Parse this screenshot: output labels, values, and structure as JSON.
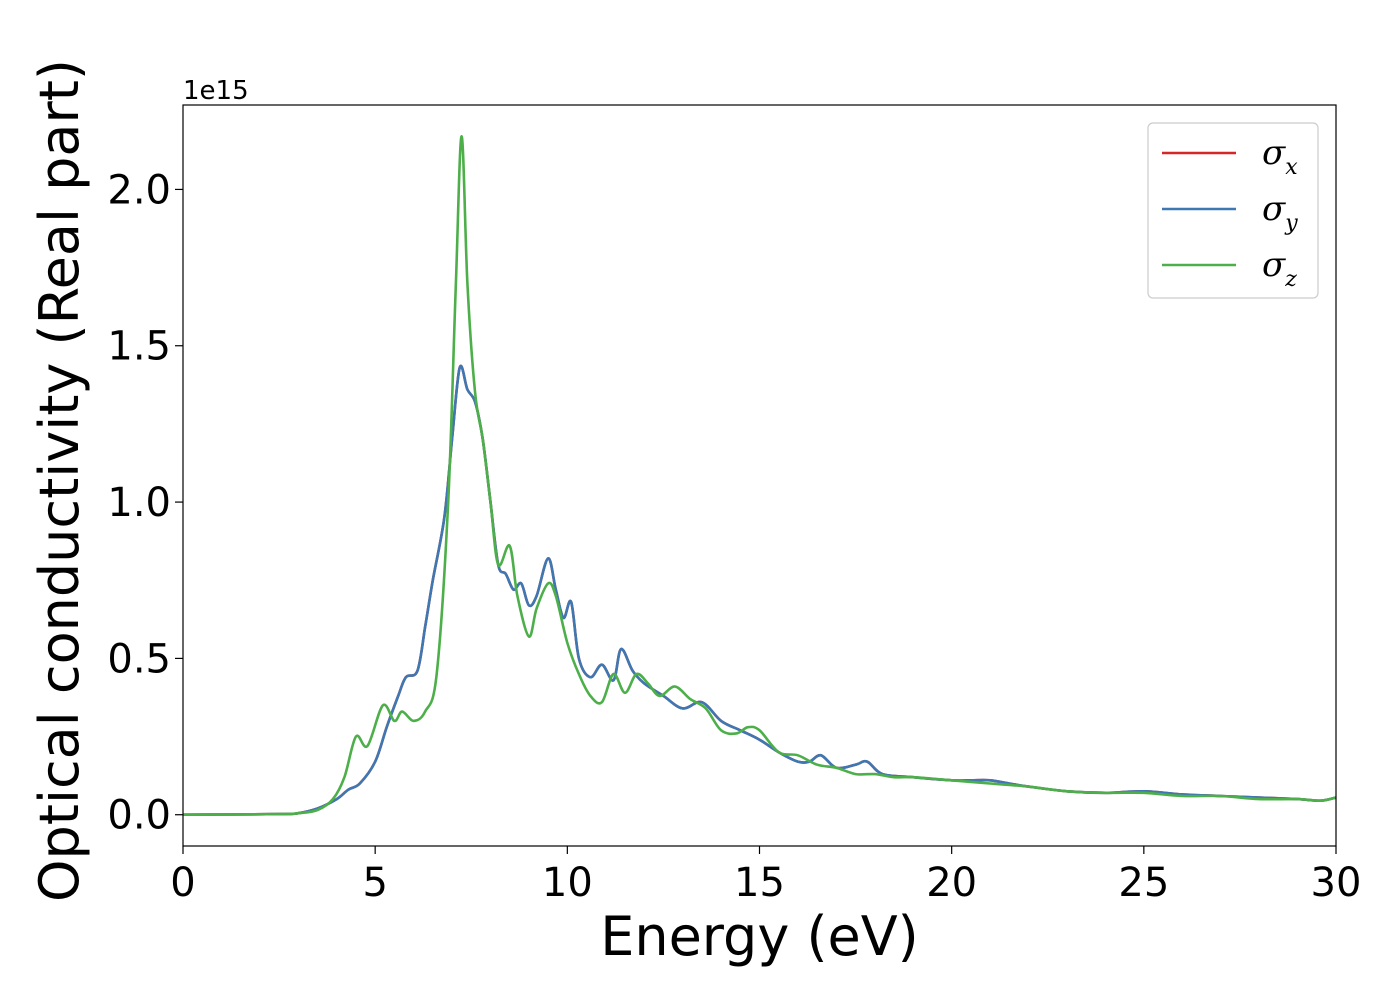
{
  "chart_data": {
    "type": "line",
    "title": "",
    "xlabel": "Energy (eV)",
    "ylabel": "Optical conductivity (Real part)",
    "y_offset_label": "1e15",
    "xlim": [
      0,
      30
    ],
    "ylim": [
      -0.1,
      2.27
    ],
    "x_ticks": [
      0,
      5,
      10,
      15,
      20,
      25,
      30
    ],
    "y_ticks": [
      0.0,
      0.5,
      1.0,
      1.5,
      2.0
    ],
    "y_tick_labels": [
      "0.0",
      "0.5",
      "1.0",
      "1.5",
      "2.0"
    ],
    "grid": false,
    "legend_position": "top-right",
    "series": [
      {
        "name": "σ",
        "subscript": "x",
        "color": "#d62728",
        "x": [
          0,
          2.5,
          3.0,
          3.5,
          4.0,
          4.3,
          4.6,
          5.0,
          5.3,
          5.6,
          5.8,
          6.1,
          6.3,
          6.5,
          6.8,
          7.0,
          7.2,
          7.4,
          7.6,
          7.8,
          8.0,
          8.2,
          8.4,
          8.6,
          8.8,
          9.0,
          9.2,
          9.5,
          9.7,
          9.9,
          10.1,
          10.3,
          10.6,
          10.9,
          11.2,
          11.4,
          11.7,
          12.0,
          12.5,
          13.0,
          13.5,
          14.0,
          14.5,
          15.0,
          15.5,
          16.0,
          16.3,
          16.6,
          17.0,
          17.5,
          17.8,
          18.2,
          19.0,
          20.0,
          20.5,
          21.0,
          21.5,
          22.0,
          23.0,
          24.0,
          25.0,
          26.0,
          27.0,
          28.0,
          29.0,
          29.6,
          30.0
        ],
        "values": [
          0.0,
          0.002,
          0.005,
          0.02,
          0.05,
          0.08,
          0.1,
          0.17,
          0.28,
          0.38,
          0.44,
          0.46,
          0.6,
          0.75,
          0.95,
          1.2,
          1.43,
          1.36,
          1.32,
          1.2,
          1.0,
          0.8,
          0.77,
          0.72,
          0.74,
          0.67,
          0.7,
          0.82,
          0.72,
          0.63,
          0.68,
          0.5,
          0.44,
          0.48,
          0.43,
          0.53,
          0.46,
          0.42,
          0.38,
          0.34,
          0.36,
          0.3,
          0.27,
          0.24,
          0.2,
          0.17,
          0.17,
          0.19,
          0.15,
          0.16,
          0.17,
          0.13,
          0.12,
          0.11,
          0.11,
          0.11,
          0.1,
          0.09,
          0.075,
          0.07,
          0.075,
          0.065,
          0.06,
          0.055,
          0.05,
          0.045,
          0.055
        ]
      },
      {
        "name": "σ",
        "subscript": "y",
        "color": "#3d78b3",
        "x": [
          0,
          2.5,
          3.0,
          3.5,
          4.0,
          4.3,
          4.6,
          5.0,
          5.3,
          5.6,
          5.8,
          6.1,
          6.3,
          6.5,
          6.8,
          7.0,
          7.2,
          7.4,
          7.6,
          7.8,
          8.0,
          8.2,
          8.4,
          8.6,
          8.8,
          9.0,
          9.2,
          9.5,
          9.7,
          9.9,
          10.1,
          10.3,
          10.6,
          10.9,
          11.2,
          11.4,
          11.7,
          12.0,
          12.5,
          13.0,
          13.5,
          14.0,
          14.5,
          15.0,
          15.5,
          16.0,
          16.3,
          16.6,
          17.0,
          17.5,
          17.8,
          18.2,
          19.0,
          20.0,
          20.5,
          21.0,
          21.5,
          22.0,
          23.0,
          24.0,
          25.0,
          26.0,
          27.0,
          28.0,
          29.0,
          29.6,
          30.0
        ],
        "values": [
          0.0,
          0.002,
          0.005,
          0.02,
          0.05,
          0.08,
          0.1,
          0.17,
          0.28,
          0.38,
          0.44,
          0.46,
          0.6,
          0.75,
          0.95,
          1.2,
          1.43,
          1.36,
          1.32,
          1.2,
          1.0,
          0.8,
          0.77,
          0.72,
          0.74,
          0.67,
          0.7,
          0.82,
          0.72,
          0.63,
          0.68,
          0.5,
          0.44,
          0.48,
          0.43,
          0.53,
          0.46,
          0.42,
          0.38,
          0.34,
          0.36,
          0.3,
          0.27,
          0.24,
          0.2,
          0.17,
          0.17,
          0.19,
          0.15,
          0.16,
          0.17,
          0.13,
          0.12,
          0.11,
          0.11,
          0.11,
          0.1,
          0.09,
          0.075,
          0.07,
          0.075,
          0.065,
          0.06,
          0.055,
          0.05,
          0.045,
          0.055
        ]
      },
      {
        "name": "σ",
        "subscript": "z",
        "color": "#4daf4a",
        "x": [
          0,
          2.5,
          3.0,
          3.5,
          3.9,
          4.2,
          4.5,
          4.8,
          5.2,
          5.5,
          5.7,
          6.0,
          6.3,
          6.6,
          6.9,
          7.1,
          7.25,
          7.4,
          7.6,
          7.8,
          8.0,
          8.2,
          8.5,
          8.7,
          9.0,
          9.2,
          9.5,
          9.7,
          10.0,
          10.3,
          10.6,
          10.9,
          11.2,
          11.5,
          11.8,
          12.1,
          12.4,
          12.8,
          13.2,
          13.6,
          14.0,
          14.4,
          14.7,
          15.0,
          15.5,
          16.0,
          16.5,
          17.0,
          17.5,
          18.0,
          18.5,
          19.0,
          20.0,
          21.0,
          22.0,
          23.0,
          24.0,
          25.0,
          26.0,
          27.0,
          28.0,
          29.0,
          29.6,
          30.0
        ],
        "values": [
          0.0,
          0.002,
          0.005,
          0.015,
          0.05,
          0.12,
          0.25,
          0.22,
          0.35,
          0.3,
          0.33,
          0.3,
          0.33,
          0.45,
          1.0,
          1.7,
          2.17,
          1.7,
          1.35,
          1.2,
          1.0,
          0.8,
          0.86,
          0.7,
          0.57,
          0.66,
          0.74,
          0.7,
          0.55,
          0.45,
          0.38,
          0.36,
          0.45,
          0.39,
          0.45,
          0.42,
          0.38,
          0.41,
          0.37,
          0.34,
          0.27,
          0.26,
          0.28,
          0.27,
          0.2,
          0.19,
          0.16,
          0.15,
          0.13,
          0.13,
          0.12,
          0.12,
          0.11,
          0.1,
          0.09,
          0.075,
          0.07,
          0.07,
          0.06,
          0.06,
          0.05,
          0.05,
          0.045,
          0.055
        ]
      }
    ]
  }
}
